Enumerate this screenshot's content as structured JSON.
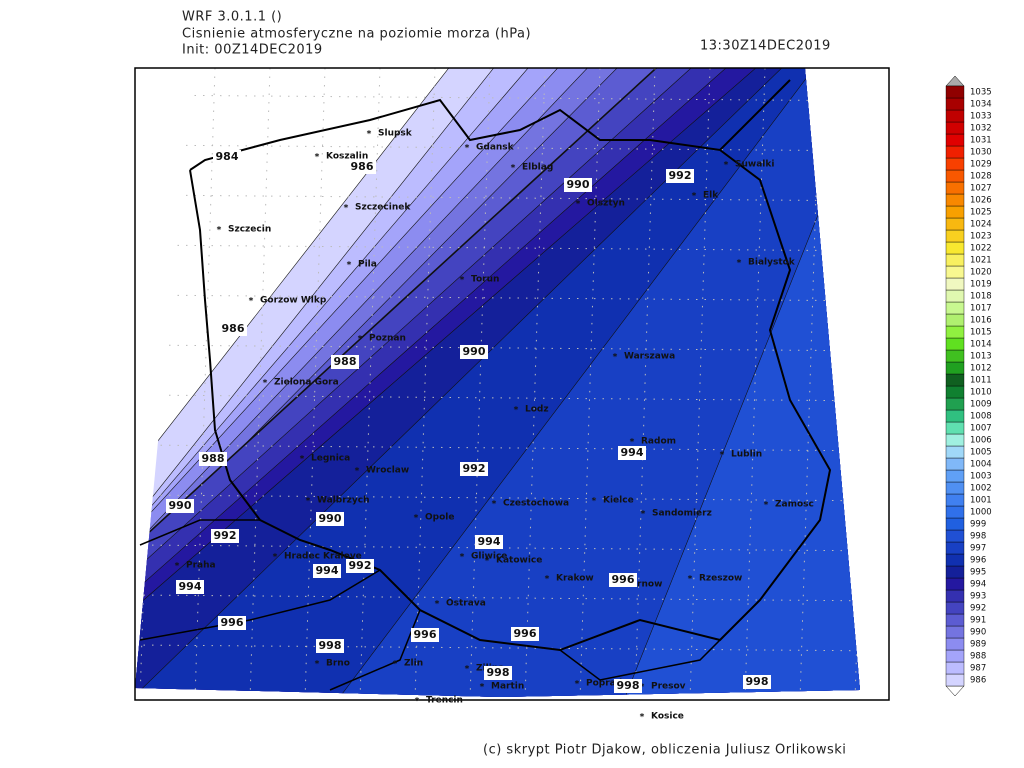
{
  "header": {
    "model": "WRF 3.0.1.1 ()",
    "title": "Cisnienie atmosferyczne na poziomie morza (hPa)",
    "init": "Init: 00Z14DEC2019",
    "valid_time": "13:30Z14DEC2019"
  },
  "footer": "(c) skrypt Piotr Djakow, obliczenia Juliusz Orlikowski",
  "cities": [
    "Slupsk",
    "Koszalin",
    "Gdansk",
    "Elblag",
    "Olsztyn",
    "Suwalki",
    "Elk",
    "Szczecinek",
    "Szczecin",
    "Bialystok",
    "Pila",
    "Torun",
    "Gorzow Wlkp",
    "Poznan",
    "Warszawa",
    "Zielona Gora",
    "Lodz",
    "Radom",
    "Lublin",
    "Legnica",
    "Wroclaw",
    "Walbrzych",
    "Kielce",
    "Zamosc",
    "Czestochowa",
    "Opole",
    "Sandomierz",
    "Hradec Kralove",
    "Gliwice",
    "Katowice",
    "Praha",
    "Krakow",
    "Tarnow",
    "Rzeszow",
    "Ostrava",
    "Brno",
    "Zlin",
    "Zilina",
    "Presov",
    "Poprad",
    "Martin",
    "Trencin",
    "Kosice"
  ],
  "contour_labels": [
    984,
    986,
    986,
    988,
    988,
    990,
    990,
    990,
    990,
    992,
    992,
    992,
    992,
    994,
    994,
    994,
    994,
    996,
    996,
    996,
    996,
    998,
    998,
    998,
    998
  ],
  "legend": {
    "values": [
      986,
      987,
      988,
      989,
      990,
      991,
      992,
      993,
      994,
      995,
      996,
      997,
      998,
      999,
      1000,
      1001,
      1002,
      1003,
      1004,
      1005,
      1006,
      1007,
      1008,
      1009,
      1010,
      1011,
      1012,
      1013,
      1014,
      1015,
      1016,
      1017,
      1018,
      1019,
      1020,
      1021,
      1022,
      1023,
      1024,
      1025,
      1026,
      1027,
      1028,
      1029,
      1030,
      1031,
      1032,
      1033,
      1034,
      1035
    ],
    "colors": [
      "#d4d4ff",
      "#bcbcff",
      "#a4a4fa",
      "#8c8cf0",
      "#7474e0",
      "#5c5cd2",
      "#4444c0",
      "#3430b0",
      "#2418a0",
      "#14209a",
      "#1030b0",
      "#1840c4",
      "#2050d4",
      "#2060e0",
      "#3070ea",
      "#4080f0",
      "#5090f2",
      "#60a0f6",
      "#80b8f8",
      "#a0d8f8",
      "#a0f0e0",
      "#60e0b0",
      "#30c080",
      "#20a050",
      "#108030",
      "#106020",
      "#20a020",
      "#40c020",
      "#60e020",
      "#90f040",
      "#b0f070",
      "#c8f890",
      "#e0f8b0",
      "#f0f8c0",
      "#f8f890",
      "#f8f060",
      "#f8e830",
      "#f8d020",
      "#f8b810",
      "#f8a000",
      "#f88800",
      "#f87000",
      "#f85800",
      "#f84000",
      "#f02000",
      "#e00000",
      "#d00000",
      "#c00000",
      "#a80000",
      "#900000"
    ]
  }
}
